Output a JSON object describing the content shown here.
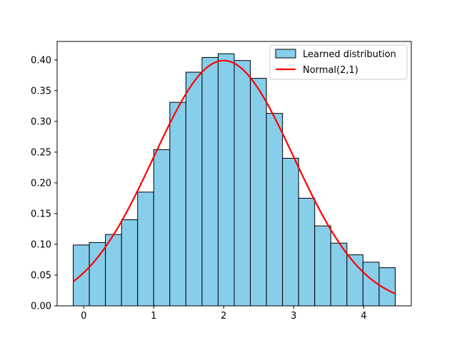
{
  "chart_data": {
    "type": "bar",
    "title": "",
    "xlabel": "",
    "ylabel": "",
    "xlim": [
      -0.38,
      4.68
    ],
    "ylim": [
      0.0,
      0.43
    ],
    "grid": false,
    "legend_position": "top-right",
    "x_ticks": [
      0,
      1,
      2,
      3,
      4
    ],
    "x_tick_labels": [
      "0",
      "1",
      "2",
      "3",
      "4"
    ],
    "y_ticks": [
      0.0,
      0.05,
      0.1,
      0.15,
      0.2,
      0.25,
      0.3,
      0.35,
      0.4
    ],
    "y_tick_labels": [
      "0.00",
      "0.05",
      "0.10",
      "0.15",
      "0.20",
      "0.25",
      "0.30",
      "0.35",
      "0.40"
    ],
    "series": [
      {
        "name": "Learned distribution",
        "type": "histogram",
        "color": "#87ceeb",
        "edge_color": "#000000",
        "bin_edges": [
          -0.15,
          0.08,
          0.31,
          0.54,
          0.77,
          1.0,
          1.23,
          1.46,
          1.69,
          1.92,
          2.15,
          2.38,
          2.61,
          2.84,
          3.07,
          3.3,
          3.53,
          3.76,
          3.99,
          4.22,
          4.45
        ],
        "values": [
          0.099,
          0.103,
          0.116,
          0.14,
          0.185,
          0.254,
          0.331,
          0.38,
          0.404,
          0.41,
          0.399,
          0.37,
          0.313,
          0.24,
          0.175,
          0.13,
          0.102,
          0.083,
          0.071,
          0.062
        ]
      },
      {
        "name": "Normal(2,1)",
        "type": "line",
        "color": "#ff0000",
        "mean": 2,
        "std": 1,
        "x_range": [
          -0.15,
          4.45
        ]
      }
    ]
  }
}
